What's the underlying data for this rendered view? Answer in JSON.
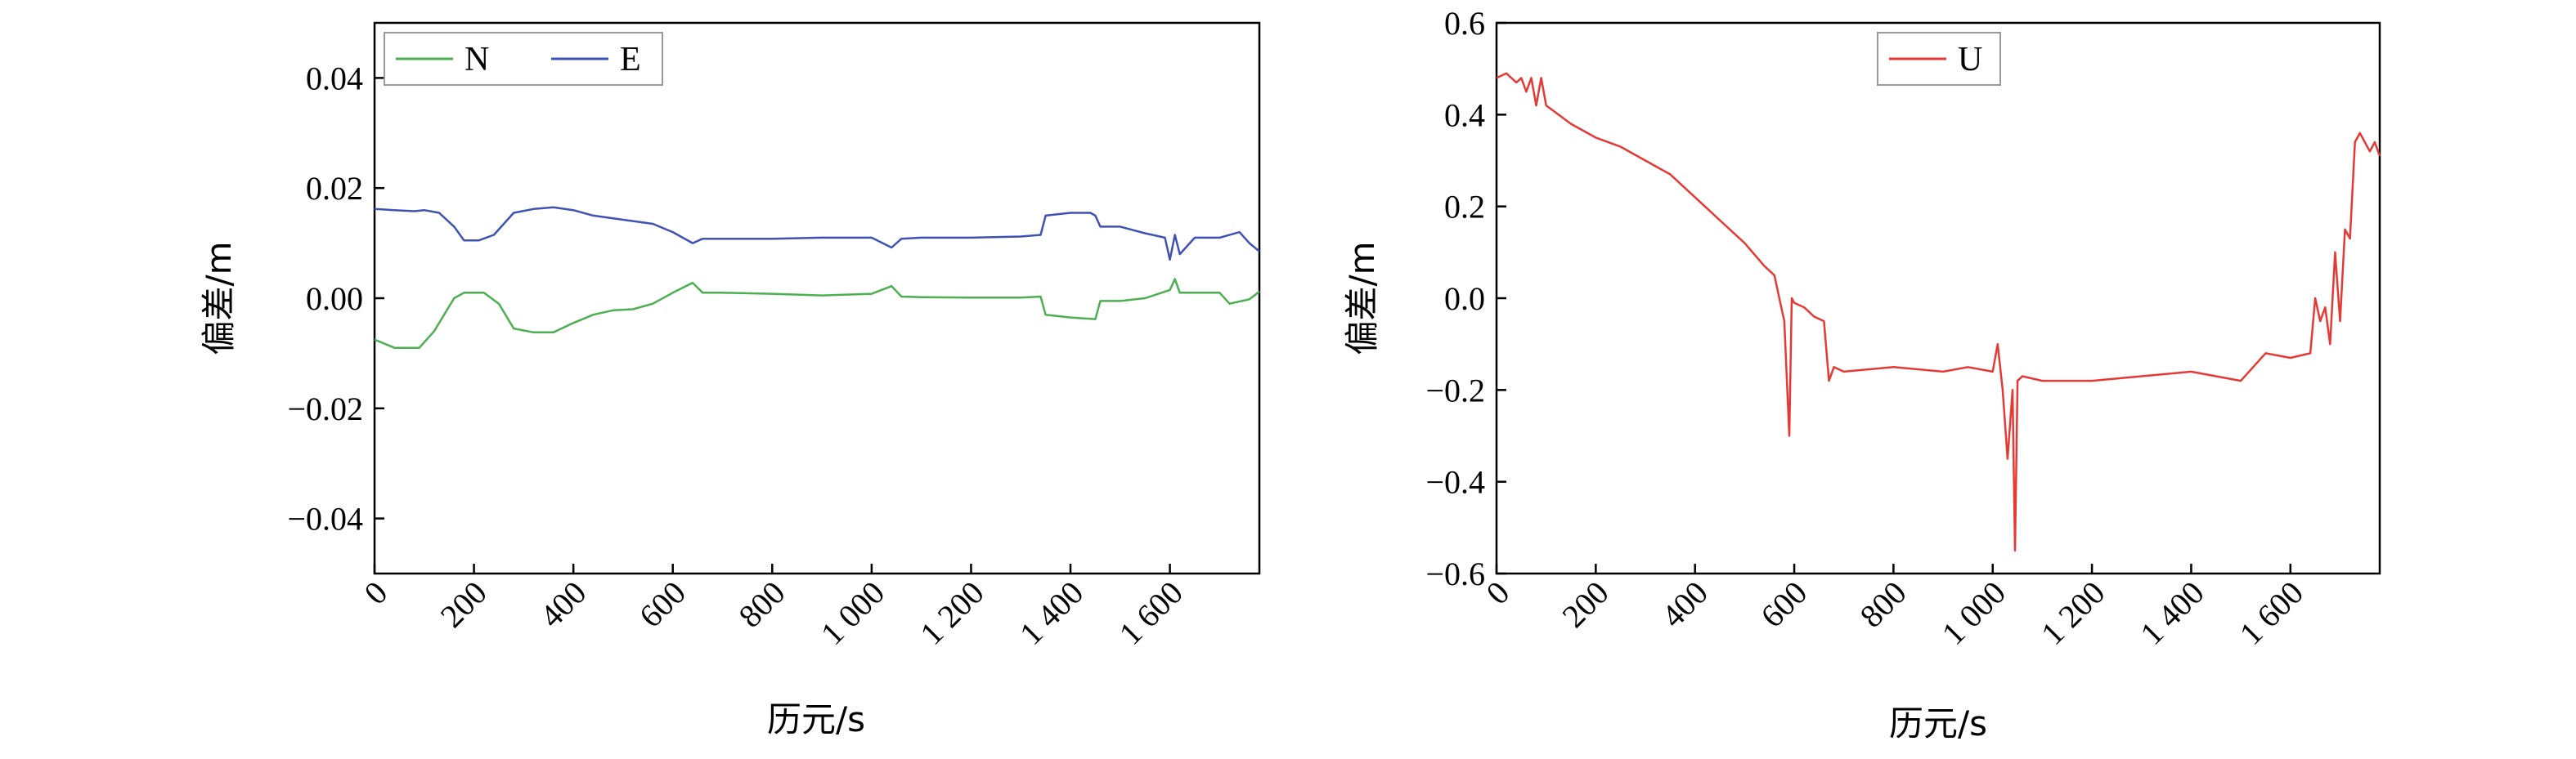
{
  "chart_data": [
    {
      "type": "line",
      "xlabel": "历元/s",
      "ylabel": "偏差/m",
      "xlim": [
        0,
        1780
      ],
      "ylim": [
        -0.05,
        0.05
      ],
      "xticks": [
        0,
        200,
        400,
        600,
        800,
        1000,
        1200,
        1400,
        1600
      ],
      "xtick_labels": [
        "0",
        "200",
        "400",
        "600",
        "800",
        "1 000",
        "1 200",
        "1 400",
        "1 600"
      ],
      "yticks": [
        -0.04,
        -0.02,
        0.0,
        0.02,
        0.04
      ],
      "ytick_labels": [
        "−0.04",
        "−0.02",
        "0.00",
        "0.02",
        "0.04"
      ],
      "legend_position": "top-left",
      "grid": false,
      "series": [
        {
          "name": "N",
          "color": "#4caf50",
          "x": [
            0,
            40,
            90,
            120,
            160,
            180,
            220,
            250,
            280,
            320,
            360,
            400,
            440,
            480,
            520,
            560,
            600,
            640,
            660,
            700,
            800,
            900,
            1000,
            1040,
            1060,
            1100,
            1200,
            1300,
            1340,
            1350,
            1400,
            1450,
            1460,
            1500,
            1550,
            1600,
            1610,
            1620,
            1650,
            1700,
            1720,
            1760,
            1780
          ],
          "y": [
            -0.0075,
            -0.009,
            -0.009,
            -0.006,
            0.0,
            0.001,
            0.001,
            -0.001,
            -0.0055,
            -0.0062,
            -0.0062,
            -0.0045,
            -0.003,
            -0.0022,
            -0.002,
            -0.001,
            0.001,
            0.0028,
            0.001,
            0.001,
            0.0008,
            0.0005,
            0.0008,
            0.0022,
            0.0003,
            0.0002,
            0.0001,
            0.0001,
            0.0003,
            -0.003,
            -0.0035,
            -0.0038,
            -0.0005,
            -0.0005,
            0.0,
            0.0015,
            0.0035,
            0.001,
            0.001,
            0.001,
            -0.001,
            -0.0002,
            0.0012
          ]
        },
        {
          "name": "E",
          "color": "#3f51b5",
          "x": [
            0,
            40,
            80,
            100,
            130,
            160,
            180,
            210,
            240,
            280,
            320,
            360,
            400,
            440,
            480,
            520,
            560,
            600,
            640,
            660,
            700,
            800,
            900,
            1000,
            1040,
            1060,
            1100,
            1200,
            1300,
            1340,
            1350,
            1400,
            1440,
            1450,
            1460,
            1500,
            1550,
            1590,
            1600,
            1610,
            1620,
            1650,
            1700,
            1740,
            1760,
            1780
          ],
          "y": [
            0.0162,
            0.016,
            0.0158,
            0.016,
            0.0155,
            0.013,
            0.0105,
            0.0105,
            0.0115,
            0.0155,
            0.0162,
            0.0165,
            0.016,
            0.015,
            0.0145,
            0.014,
            0.0135,
            0.012,
            0.01,
            0.0108,
            0.0108,
            0.0108,
            0.011,
            0.011,
            0.0092,
            0.0108,
            0.011,
            0.011,
            0.0112,
            0.0115,
            0.015,
            0.0155,
            0.0155,
            0.015,
            0.013,
            0.013,
            0.0118,
            0.011,
            0.007,
            0.0115,
            0.008,
            0.011,
            0.011,
            0.012,
            0.01,
            0.0085
          ]
        }
      ]
    },
    {
      "type": "line",
      "xlabel": "历元/s",
      "ylabel": "偏差/m",
      "xlim": [
        0,
        1780
      ],
      "ylim": [
        -0.6,
        0.6
      ],
      "xticks": [
        0,
        200,
        400,
        600,
        800,
        1000,
        1200,
        1400,
        1600
      ],
      "xtick_labels": [
        "0",
        "200",
        "400",
        "600",
        "800",
        "1 000",
        "1 200",
        "1 400",
        "1 600"
      ],
      "yticks": [
        -0.6,
        -0.4,
        -0.2,
        0.0,
        0.2,
        0.4,
        0.6
      ],
      "ytick_labels": [
        "−0.6",
        "−0.4",
        "−0.2",
        "0.0",
        "0.2",
        "0.4",
        "0.6"
      ],
      "legend_position": "top-center",
      "grid": false,
      "series": [
        {
          "name": "U",
          "color": "#e53935",
          "x": [
            0,
            20,
            40,
            50,
            60,
            70,
            80,
            90,
            100,
            150,
            200,
            250,
            300,
            350,
            400,
            450,
            500,
            540,
            560,
            570,
            580,
            590,
            595,
            600,
            620,
            640,
            660,
            670,
            680,
            700,
            800,
            900,
            950,
            1000,
            1010,
            1020,
            1030,
            1040,
            1045,
            1050,
            1060,
            1100,
            1200,
            1300,
            1400,
            1500,
            1550,
            1600,
            1640,
            1650,
            1660,
            1670,
            1680,
            1690,
            1700,
            1710,
            1720,
            1730,
            1740,
            1750,
            1760,
            1770,
            1780
          ],
          "y": [
            0.48,
            0.49,
            0.47,
            0.48,
            0.45,
            0.48,
            0.42,
            0.48,
            0.42,
            0.38,
            0.35,
            0.33,
            0.3,
            0.27,
            0.22,
            0.17,
            0.12,
            0.07,
            0.05,
            0.0,
            -0.05,
            -0.3,
            0.0,
            -0.01,
            -0.02,
            -0.04,
            -0.05,
            -0.18,
            -0.15,
            -0.16,
            -0.15,
            -0.16,
            -0.15,
            -0.16,
            -0.1,
            -0.2,
            -0.35,
            -0.2,
            -0.55,
            -0.18,
            -0.17,
            -0.18,
            -0.18,
            -0.17,
            -0.16,
            -0.18,
            -0.12,
            -0.13,
            -0.12,
            0.0,
            -0.05,
            -0.02,
            -0.1,
            0.1,
            -0.05,
            0.15,
            0.13,
            0.34,
            0.36,
            0.34,
            0.32,
            0.34,
            0.31
          ]
        }
      ]
    }
  ]
}
